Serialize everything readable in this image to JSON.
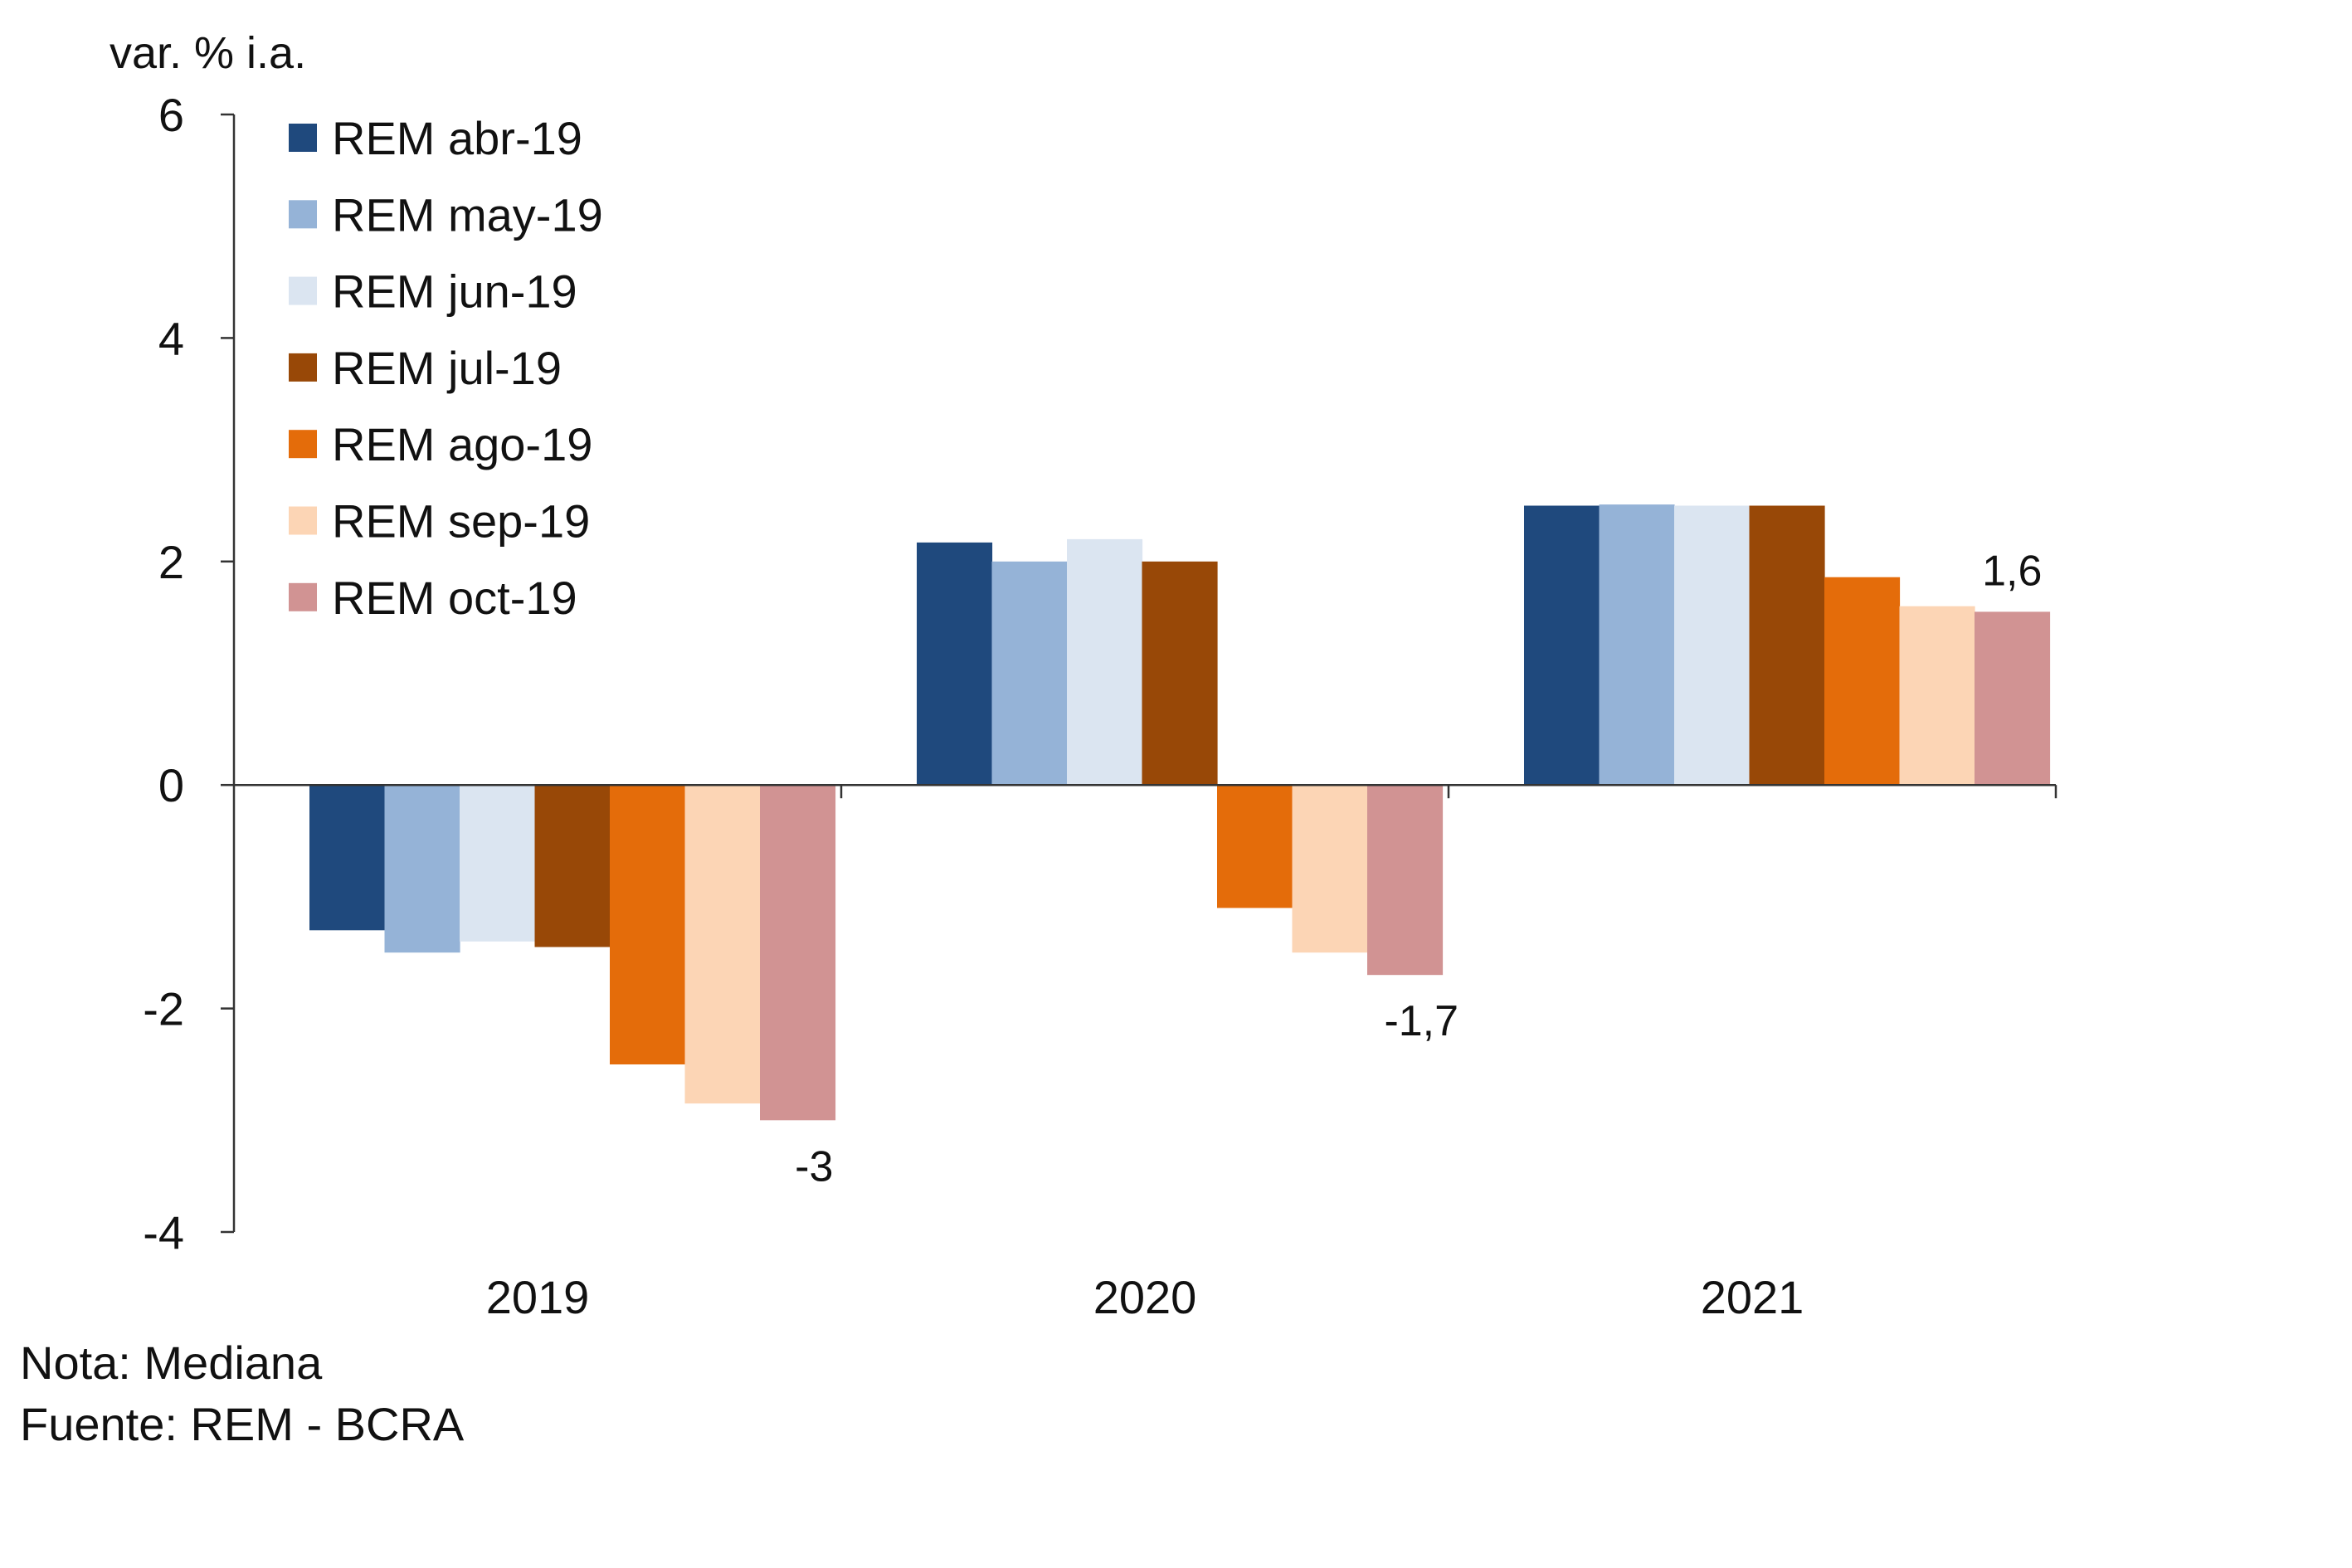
{
  "chart_data": {
    "type": "bar",
    "ylabel": "var. % i.a.",
    "ylim": [
      -4,
      6
    ],
    "yticks": [
      "6",
      "4",
      "2",
      "0",
      "-2",
      "-4"
    ],
    "ytick_values": [
      6,
      4,
      2,
      0,
      -2,
      -4
    ],
    "categories": [
      "2019",
      "2020",
      "2021"
    ],
    "grid": false,
    "legend_position": "top-left",
    "series": [
      {
        "name": "REM abr-19",
        "color": "#1f497d",
        "values": [
          -1.3,
          2.17,
          2.5
        ]
      },
      {
        "name": "REM may-19",
        "color": "#95b3d7",
        "values": [
          -1.5,
          2.0,
          2.51
        ]
      },
      {
        "name": "REM jun-19",
        "color": "#dbe5f1",
        "values": [
          -1.4,
          2.2,
          2.5
        ]
      },
      {
        "name": "REM jul-19",
        "color": "#984807",
        "values": [
          -1.45,
          2.0,
          2.5
        ]
      },
      {
        "name": "REM ago-19",
        "color": "#e46c0a",
        "values": [
          -2.5,
          -1.1,
          1.86
        ]
      },
      {
        "name": "REM sep-19",
        "color": "#fcd5b5",
        "values": [
          -2.85,
          -1.5,
          1.6
        ]
      },
      {
        "name": "REM oct-19",
        "color": "#d19393",
        "values": [
          -3.0,
          -1.7,
          1.55
        ]
      }
    ],
    "data_labels": [
      {
        "series": 6,
        "category": 0,
        "text": "-3"
      },
      {
        "series": 6,
        "category": 1,
        "text": "-1,7"
      },
      {
        "series": 6,
        "category": 2,
        "text": "1,6"
      }
    ]
  },
  "footer": {
    "note": "Nota: Mediana",
    "source": "Fuente: REM - BCRA"
  }
}
